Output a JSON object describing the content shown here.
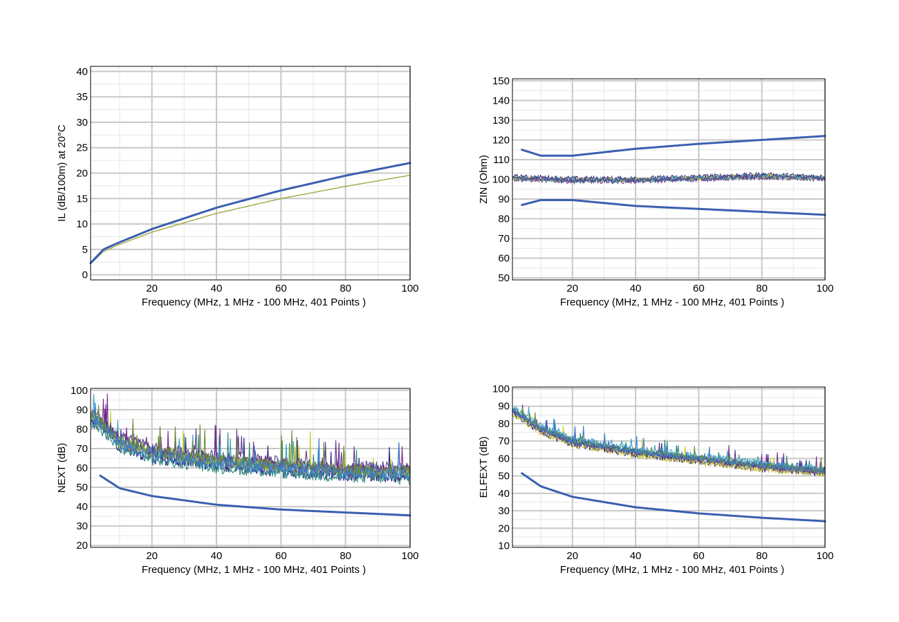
{
  "colors": {
    "limit_line": "#3a5fb0",
    "grid_major": "#c8c8c8",
    "grid_minor": "#e6e6e6",
    "frame": "#000000",
    "pairs": [
      "#2a1f7a",
      "#7a2a8c",
      "#2e8a7a",
      "#c8c83a",
      "#3aa0c8",
      "#5b3a8c",
      "#6a8a3a",
      "#3a7acc"
    ]
  },
  "chart_data": [
    {
      "id": "il",
      "type": "line",
      "xlabel": "Frequency (MHz, 1 MHz - 100 MHz, 401 Points )",
      "ylabel": "IL (dB/100m) at 20°C",
      "xlim": [
        1,
        100
      ],
      "ylim": [
        -1,
        41
      ],
      "xticks": [
        "20",
        "40",
        "60",
        "80",
        "100"
      ],
      "yticks": [
        "0",
        "5",
        "10",
        "15",
        "20",
        "25",
        "30",
        "35",
        "40"
      ],
      "grid": true,
      "limit_lines": [
        {
          "x": [
            1,
            5,
            10,
            20,
            40,
            60,
            80,
            100
          ],
          "y": [
            2.3,
            5.0,
            6.4,
            9.0,
            13.2,
            16.6,
            19.5,
            22.0
          ]
        }
      ],
      "measurements": {
        "count": 4,
        "x": [
          1,
          5,
          10,
          20,
          40,
          60,
          80,
          100
        ],
        "y": [
          2.2,
          4.6,
          6.0,
          8.4,
          12.1,
          15.0,
          17.4,
          19.6
        ],
        "noise": 0.15
      }
    },
    {
      "id": "zin",
      "type": "line",
      "xlabel": "Frequency (MHz, 1 MHz - 100 MHz, 401 Points )",
      "ylabel": "ZIN (Ohm)",
      "xlim": [
        1,
        100
      ],
      "ylim": [
        49,
        151
      ],
      "xticks": [
        "20",
        "40",
        "60",
        "80",
        "100"
      ],
      "yticks": [
        "50",
        "60",
        "70",
        "80",
        "90",
        "100",
        "110",
        "120",
        "130",
        "140",
        "150"
      ],
      "grid": true,
      "limit_lines": [
        {
          "x": [
            4,
            10,
            20,
            40,
            60,
            80,
            100
          ],
          "y": [
            115,
            112,
            112,
            115.5,
            118,
            120,
            122
          ]
        },
        {
          "x": [
            4,
            10,
            20,
            40,
            60,
            80,
            100
          ],
          "y": [
            87,
            89.5,
            89.5,
            86.5,
            85,
            83.5,
            82
          ]
        }
      ],
      "measurements": {
        "count": 6,
        "x": [
          1,
          20,
          40,
          60,
          80,
          100
        ],
        "y": [
          101,
          100,
          100,
          101,
          102,
          101
        ],
        "noise": 2.2
      }
    },
    {
      "id": "next",
      "type": "line",
      "xlabel": "Frequency (MHz, 1 MHz - 100 MHz, 401 Points )",
      "ylabel": "NEXT (dB)",
      "xlim": [
        1,
        100
      ],
      "ylim": [
        19,
        101
      ],
      "xticks": [
        "20",
        "40",
        "60",
        "80",
        "100"
      ],
      "yticks": [
        "20",
        "30",
        "40",
        "50",
        "60",
        "70",
        "80",
        "90",
        "100"
      ],
      "grid": true,
      "limit_lines": [
        {
          "x": [
            4,
            10,
            20,
            40,
            60,
            80,
            100
          ],
          "y": [
            56,
            49.5,
            45.5,
            41,
            38.5,
            37,
            35.5
          ]
        }
      ],
      "measurements": {
        "count": 8,
        "x": [
          1,
          10,
          20,
          40,
          60,
          80,
          100
        ],
        "y": [
          86,
          72,
          66,
          62,
          59,
          57,
          56
        ],
        "noise": 6.5
      }
    },
    {
      "id": "elfext",
      "type": "line",
      "xlabel": "Frequency (MHz, 1 MHz - 100 MHz, 401 Points )",
      "ylabel": "ELFEXT (dB)",
      "xlim": [
        1,
        100
      ],
      "ylim": [
        9,
        101
      ],
      "xticks": [
        "20",
        "40",
        "60",
        "80",
        "100"
      ],
      "yticks": [
        "10",
        "20",
        "30",
        "40",
        "50",
        "60",
        "70",
        "80",
        "90",
        "100"
      ],
      "grid": true,
      "limit_lines": [
        {
          "x": [
            4,
            10,
            20,
            40,
            60,
            80,
            100
          ],
          "y": [
            51.5,
            44,
            38,
            32,
            28.5,
            26,
            24
          ]
        }
      ],
      "measurements": {
        "count": 8,
        "x": [
          1,
          10,
          20,
          40,
          60,
          80,
          100
        ],
        "y": [
          88,
          77,
          70,
          64,
          60,
          56,
          53
        ],
        "noise": 3.5
      }
    }
  ]
}
